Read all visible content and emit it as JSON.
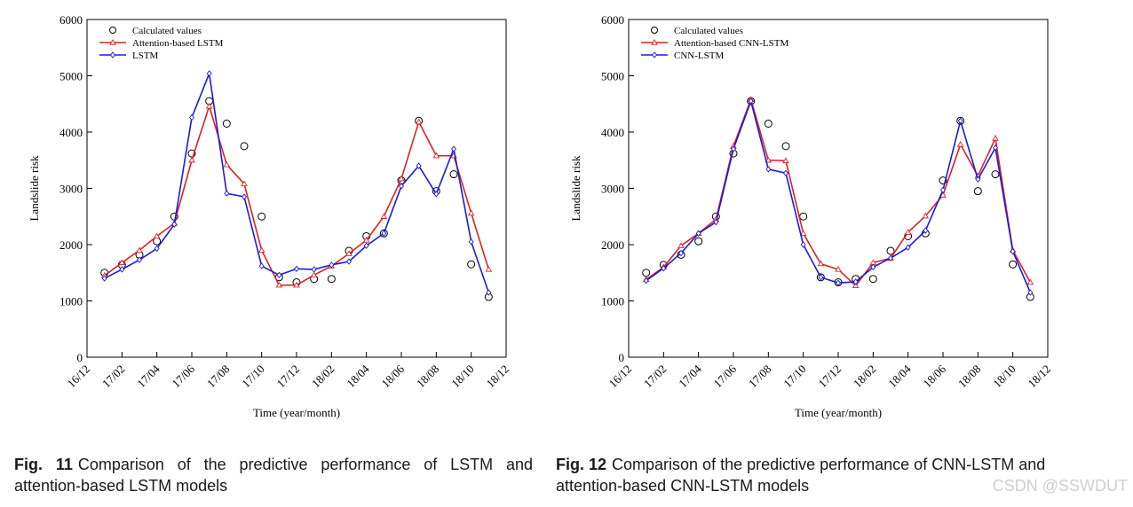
{
  "chart_data": [
    {
      "type": "line",
      "xlabel": "Time (year/month)",
      "ylabel": "Landslide risk",
      "ylim": [
        0,
        6000
      ],
      "yticks": [
        0,
        1000,
        2000,
        3000,
        4000,
        5000,
        6000
      ],
      "xticks": [
        "16/12",
        "17/02",
        "17/04",
        "17/06",
        "17/08",
        "17/10",
        "17/12",
        "18/02",
        "18/04",
        "18/06",
        "18/08",
        "18/10",
        "18/12"
      ],
      "x": [
        "17/01",
        "17/02",
        "17/03",
        "17/04",
        "17/05",
        "17/06",
        "17/07",
        "17/08",
        "17/09",
        "17/10",
        "17/11",
        "17/12",
        "18/01",
        "18/02",
        "18/03",
        "18/04",
        "18/05",
        "18/06",
        "18/07",
        "18/08",
        "18/09",
        "18/10",
        "18/11"
      ],
      "legend_position": "top-left",
      "grid": false,
      "series": [
        {
          "name": "Calculated values",
          "style": "marker-circle",
          "color": "#000000",
          "values": [
            1500,
            1640,
            1820,
            2060,
            2500,
            3620,
            4550,
            4150,
            3750,
            2500,
            1420,
            1330,
            1390,
            1390,
            1890,
            2150,
            2200,
            3140,
            4200,
            2950,
            3250,
            1650,
            1070
          ]
        },
        {
          "name": "Attention-based LSTM",
          "style": "line-triangle",
          "color": "#e02020",
          "values": [
            1450,
            1680,
            1900,
            2150,
            2380,
            3500,
            4460,
            3420,
            3080,
            1900,
            1280,
            1280,
            1460,
            1620,
            1840,
            2080,
            2500,
            3170,
            4180,
            3580,
            3580,
            2560,
            1560
          ]
        },
        {
          "name": "LSTM",
          "style": "line-diamond",
          "color": "#1a1ae0",
          "values": [
            1400,
            1560,
            1730,
            1930,
            2360,
            4260,
            5040,
            2910,
            2850,
            1620,
            1460,
            1570,
            1560,
            1640,
            1700,
            1980,
            2200,
            3040,
            3400,
            2900,
            3700,
            2050,
            1150
          ]
        }
      ]
    },
    {
      "type": "line",
      "xlabel": "Time (year/month)",
      "ylabel": "Landslide risk",
      "ylim": [
        0,
        6000
      ],
      "yticks": [
        0,
        1000,
        2000,
        3000,
        4000,
        5000,
        6000
      ],
      "xticks": [
        "16/12",
        "17/02",
        "17/04",
        "17/06",
        "17/08",
        "17/10",
        "17/12",
        "18/02",
        "18/04",
        "18/06",
        "18/08",
        "18/10",
        "18/12"
      ],
      "x": [
        "17/01",
        "17/02",
        "17/03",
        "17/04",
        "17/05",
        "17/06",
        "17/07",
        "17/08",
        "17/09",
        "17/10",
        "17/11",
        "17/12",
        "18/01",
        "18/02",
        "18/03",
        "18/04",
        "18/05",
        "18/06",
        "18/07",
        "18/08",
        "18/09",
        "18/10",
        "18/11"
      ],
      "legend_position": "top-left",
      "grid": false,
      "series": [
        {
          "name": "Calculated values",
          "style": "marker-circle",
          "color": "#000000",
          "values": [
            1500,
            1640,
            1820,
            2060,
            2500,
            3620,
            4550,
            4150,
            3750,
            2500,
            1420,
            1330,
            1390,
            1390,
            1890,
            2150,
            2200,
            3140,
            4200,
            2950,
            3250,
            1650,
            1070
          ]
        },
        {
          "name": "Attention-based CNN-LSTM",
          "style": "line-triangle",
          "color": "#e02020",
          "values": [
            1380,
            1600,
            1980,
            2200,
            2450,
            3750,
            4580,
            3500,
            3490,
            2200,
            1660,
            1560,
            1270,
            1680,
            1760,
            2220,
            2510,
            2880,
            3780,
            3220,
            3890,
            1900,
            1330
          ]
        },
        {
          "name": "CNN-LSTM",
          "style": "line-diamond",
          "color": "#1a1ae0",
          "values": [
            1360,
            1580,
            1850,
            2200,
            2400,
            3700,
            4550,
            3340,
            3270,
            2000,
            1420,
            1320,
            1340,
            1600,
            1760,
            1950,
            2250,
            2970,
            4200,
            3160,
            3720,
            1880,
            1150
          ]
        }
      ]
    }
  ],
  "captions": {
    "left": {
      "num": "Fig. 11",
      "text": "Comparison of the predictive performance of LSTM and attention-based LSTM models"
    },
    "right": {
      "num": "Fig. 12",
      "text": "Comparison of the predictive performance of CNN-LSTM and attention-based CNN-LSTM models"
    }
  },
  "watermark": "CSDN @SSWDUT"
}
